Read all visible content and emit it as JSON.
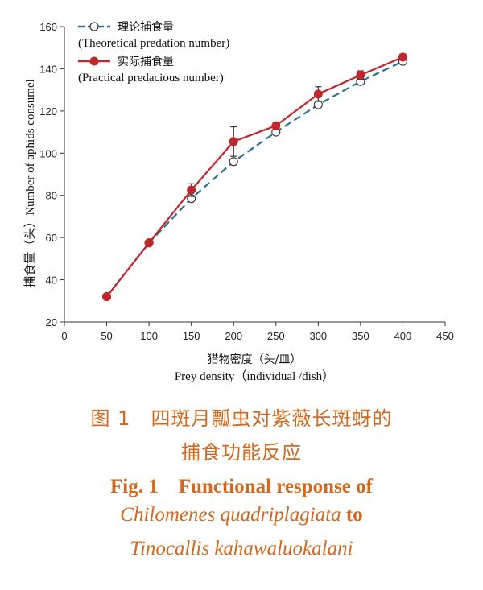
{
  "chart_data": {
    "type": "line",
    "ylabel": "捕食量（头）Number of aphids consumel",
    "xlabel_cn": "猎物密度（头/皿）",
    "xlabel_en": "Prey density（individual /dish）",
    "xlim": [
      0,
      450
    ],
    "ylim": [
      20,
      160
    ],
    "x_ticks": [
      0,
      50,
      100,
      150,
      200,
      250,
      300,
      350,
      400,
      450
    ],
    "y_ticks": [
      20,
      40,
      60,
      80,
      100,
      120,
      140,
      160
    ],
    "grid": false,
    "legend_position": "top-left",
    "x": [
      50,
      100,
      150,
      200,
      250,
      300,
      350,
      400
    ],
    "series": [
      {
        "name_cn": "理论捕食量",
        "name_en": "(Theoretical  predation  number)",
        "style": "dashed, open circles",
        "color": "#2a6f97",
        "values": [
          32,
          57.5,
          78.5,
          96,
          110,
          123,
          134,
          143.5
        ]
      },
      {
        "name_cn": "实际捕食量",
        "name_en": "(Practical predacious number)",
        "style": "solid, filled circles, error bars",
        "color": "#c0272d",
        "values": [
          32,
          57.5,
          82.5,
          105.5,
          113,
          128,
          137,
          145.5
        ],
        "errors": [
          0.5,
          0.8,
          3,
          7,
          1.8,
          3.5,
          2,
          1.5
        ]
      }
    ]
  },
  "caption": {
    "cn_line1": "图 1　四斑月瓢虫对紫薇长斑蚜的",
    "cn_line2": "捕食功能反应",
    "en_line1": "Fig. 1　Functional response of",
    "en_line2_italic": "Chilomenes  quadriplagiata",
    "en_line2_tail": "to",
    "en_line3": "Tinocallis  kahawaluokalani"
  }
}
